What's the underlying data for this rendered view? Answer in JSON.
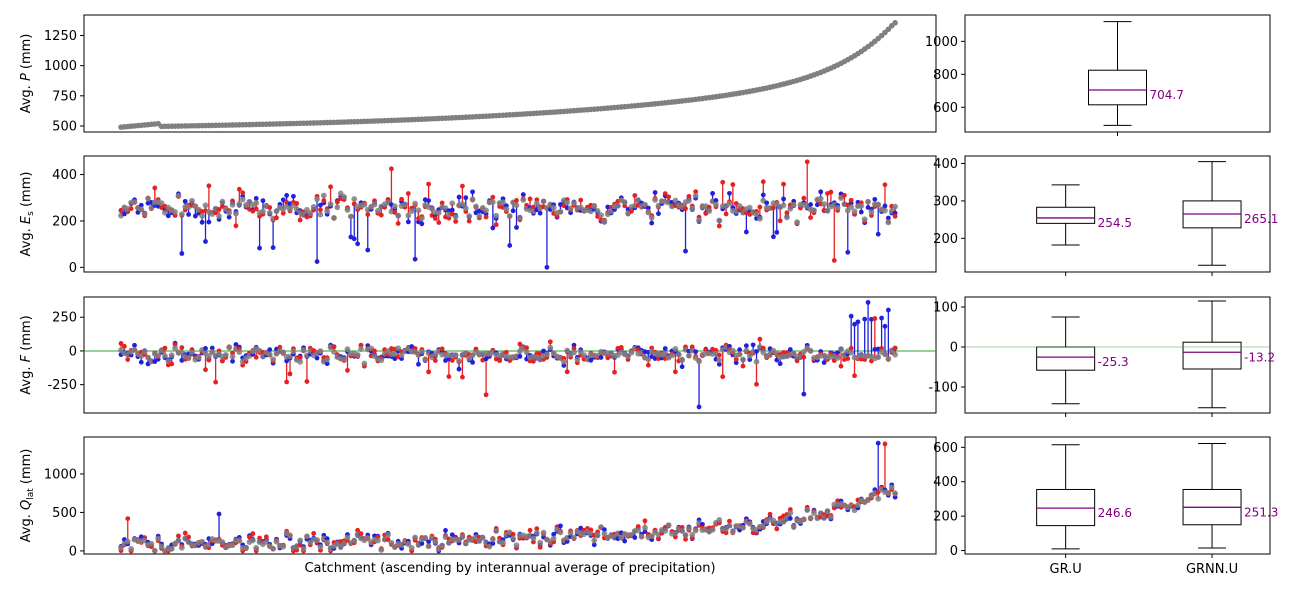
{
  "chart_data": [
    {
      "type": "scatter",
      "ylabel_parts": [
        "Avg. ",
        "P",
        " (mm)"
      ],
      "ylim": [
        450,
        1420
      ],
      "yticks": [
        500,
        750,
        1000,
        1250
      ],
      "series": [
        {
          "name": "",
          "color": "#808080"
        }
      ],
      "n_points": 230,
      "values_summary": {
        "min": 490,
        "max": 1355
      }
    },
    {
      "type": "scatter",
      "ylabel_parts": [
        "Avg. ",
        "E",
        "s",
        " (mm)"
      ],
      "ylim": [
        -20,
        480
      ],
      "yticks": [
        0,
        200,
        400
      ],
      "colors": {
        "observed": "#808080",
        "gr": "#2020e0",
        "grnn": "#e82020"
      }
    },
    {
      "type": "scatter",
      "ylabel_parts": [
        "Avg. ",
        "F",
        " (mm)"
      ],
      "ylim": [
        -460,
        400
      ],
      "yticks": [
        -250,
        0,
        250
      ],
      "zero_line_color": "#2ca02c"
    },
    {
      "type": "scatter",
      "ylabel_parts": [
        "Avg. ",
        "Q",
        "lat",
        " (mm)"
      ],
      "ylim": [
        -40,
        1480
      ],
      "yticks": [
        0,
        500,
        1000
      ],
      "xlabel": "Catchment (ascending by interannual average of precipitation)"
    },
    {
      "type": "box",
      "categories": [
        ""
      ],
      "ylim": [
        450,
        1160
      ],
      "yticks": [
        600,
        800,
        1000
      ],
      "boxes": [
        {
          "whislo": 490,
          "q1": 615,
          "med": 704.7,
          "q3": 825,
          "whishi": 1120,
          "label": "704.7"
        }
      ]
    },
    {
      "type": "box",
      "categories": [
        "GR.U",
        "GRNN.U"
      ],
      "ylim": [
        110,
        420
      ],
      "yticks": [
        200,
        300,
        400
      ],
      "boxes": [
        {
          "whislo": 182,
          "q1": 240,
          "med": 254.5,
          "q3": 283,
          "whishi": 343,
          "label": "254.5"
        },
        {
          "whislo": 128,
          "q1": 228,
          "med": 265.1,
          "q3": 300,
          "whishi": 405,
          "label": "265.1"
        }
      ]
    },
    {
      "type": "box",
      "categories": [
        "GR.U",
        "GRNN.U"
      ],
      "ylim": [
        -165,
        125
      ],
      "yticks": [
        -100,
        0,
        100
      ],
      "boxes": [
        {
          "whislo": -142,
          "q1": -58,
          "med": -25.3,
          "q3": 0,
          "whishi": 75,
          "label": "-25.3"
        },
        {
          "whislo": -152,
          "q1": -55,
          "med": -13.2,
          "q3": 12,
          "whishi": 115,
          "label": "-13.2"
        }
      ]
    },
    {
      "type": "box",
      "categories": [
        "GR.U",
        "GRNN.U"
      ],
      "ylim": [
        -20,
        660
      ],
      "yticks": [
        0,
        200,
        400,
        600
      ],
      "boxes": [
        {
          "whislo": 10,
          "q1": 145,
          "med": 246.6,
          "q3": 355,
          "whishi": 615,
          "label": "246.6"
        },
        {
          "whislo": 15,
          "q1": 150,
          "med": 251.3,
          "q3": 355,
          "whishi": 622,
          "label": "251.3"
        }
      ],
      "xticklabels": [
        "GR.U",
        "GRNN.U"
      ]
    }
  ],
  "colors": {
    "median": "#800080",
    "observed": "#808080",
    "gr": "#2020e0",
    "grnn": "#e82020",
    "zero_line": "#2ca02c"
  }
}
